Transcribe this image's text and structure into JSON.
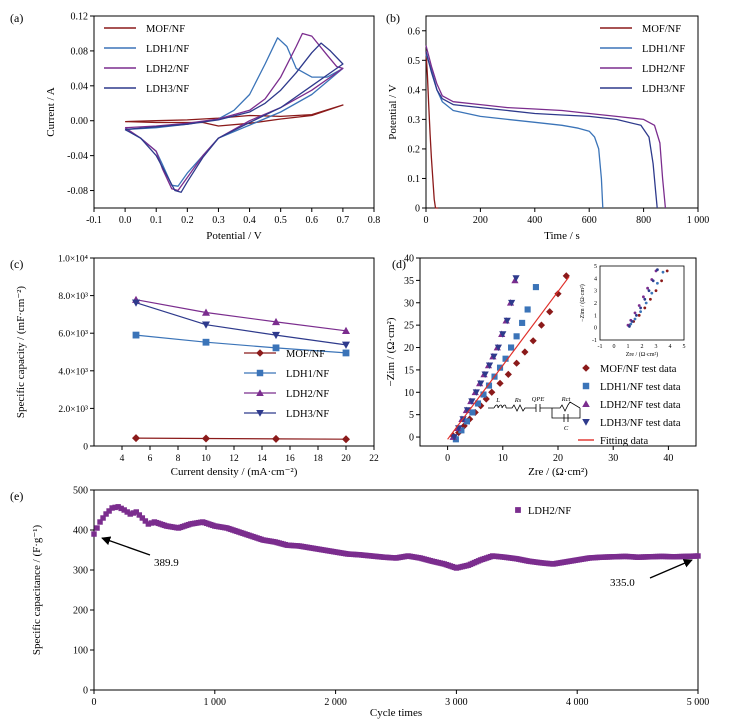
{
  "chart_data": [
    {
      "panel": "(a)",
      "type": "line",
      "xlabel": "Potential / V",
      "ylabel": "Current / A",
      "xlim": [
        -0.1,
        0.8
      ],
      "ylim": [
        -0.1,
        0.12
      ],
      "xticks": [
        -0.1,
        0.0,
        0.1,
        0.2,
        0.3,
        0.4,
        0.5,
        0.6,
        0.7,
        0.8
      ],
      "yticks": [
        -0.08,
        -0.04,
        0.0,
        0.04,
        0.08,
        0.12
      ],
      "xticklabels": [
        "-0.1",
        "0.0",
        "0.1",
        "0.2",
        "0.3",
        "0.4",
        "0.5",
        "0.6",
        "0.7",
        "0.8"
      ],
      "yticklabels": [
        "-0.08",
        "-0.04",
        "0.00",
        "0.04",
        "0.08",
        "0.12"
      ],
      "legend_position": "top-left",
      "series": [
        {
          "name": "MOF/NF",
          "color": "#8b1a1a",
          "x": [
            0,
            0.1,
            0.2,
            0.3,
            0.4,
            0.5,
            0.6,
            0.7,
            0.7,
            0.6,
            0.5,
            0.4,
            0.3,
            0.25,
            0.2,
            0.1,
            0
          ],
          "y": [
            -0.001,
            0.0,
            0.001,
            0.003,
            0.006,
            0.005,
            0.007,
            0.018,
            0.018,
            0.006,
            0.002,
            -0.003,
            -0.006,
            -0.002,
            -0.002,
            -0.002,
            -0.001
          ]
        },
        {
          "name": "LDH1/NF",
          "color": "#3b74b8",
          "x": [
            0,
            0.1,
            0.2,
            0.3,
            0.35,
            0.4,
            0.45,
            0.49,
            0.52,
            0.55,
            0.6,
            0.65,
            0.7,
            0.7,
            0.6,
            0.5,
            0.4,
            0.3,
            0.25,
            0.2,
            0.17,
            0.15,
            0.12,
            0.1,
            0.05,
            0
          ],
          "y": [
            -0.01,
            -0.008,
            -0.004,
            0.002,
            0.012,
            0.03,
            0.065,
            0.095,
            0.085,
            0.06,
            0.05,
            0.05,
            0.06,
            0.06,
            0.03,
            0.01,
            -0.005,
            -0.02,
            -0.04,
            -0.06,
            -0.075,
            -0.074,
            -0.05,
            -0.035,
            -0.02,
            -0.01
          ]
        },
        {
          "name": "LDH2/NF",
          "color": "#7b2d8e",
          "x": [
            0,
            0.1,
            0.2,
            0.3,
            0.4,
            0.45,
            0.5,
            0.55,
            0.57,
            0.6,
            0.65,
            0.68,
            0.7,
            0.7,
            0.6,
            0.5,
            0.4,
            0.3,
            0.25,
            0.2,
            0.17,
            0.15,
            0.12,
            0.1,
            0.05,
            0
          ],
          "y": [
            -0.008,
            -0.006,
            -0.003,
            0.002,
            0.012,
            0.025,
            0.05,
            0.085,
            0.1,
            0.097,
            0.075,
            0.062,
            0.06,
            0.06,
            0.035,
            0.015,
            0.0,
            -0.02,
            -0.04,
            -0.065,
            -0.08,
            -0.078,
            -0.055,
            -0.035,
            -0.02,
            -0.008
          ]
        },
        {
          "name": "LDH3/NF",
          "color": "#2e3a8c",
          "x": [
            0,
            0.1,
            0.2,
            0.3,
            0.4,
            0.45,
            0.5,
            0.55,
            0.6,
            0.63,
            0.66,
            0.7,
            0.7,
            0.6,
            0.5,
            0.4,
            0.3,
            0.25,
            0.2,
            0.18,
            0.16,
            0.13,
            0.1,
            0.05,
            0
          ],
          "y": [
            -0.01,
            -0.007,
            -0.004,
            0.001,
            0.01,
            0.02,
            0.035,
            0.055,
            0.078,
            0.089,
            0.08,
            0.065,
            0.065,
            0.04,
            0.015,
            -0.002,
            -0.02,
            -0.042,
            -0.07,
            -0.082,
            -0.08,
            -0.06,
            -0.04,
            -0.02,
            -0.01
          ]
        }
      ]
    },
    {
      "panel": "(b)",
      "type": "line",
      "xlabel": "Time / s",
      "ylabel": "Potential / V",
      "xlim": [
        0,
        1000
      ],
      "ylim": [
        0,
        0.65
      ],
      "xticks": [
        0,
        200,
        400,
        600,
        800,
        1000
      ],
      "yticks": [
        0,
        0.1,
        0.2,
        0.3,
        0.4,
        0.5,
        0.6
      ],
      "xticklabels": [
        "0",
        "200",
        "400",
        "600",
        "800",
        "1 000"
      ],
      "yticklabels": [
        "0",
        "0.1",
        "0.2",
        "0.3",
        "0.4",
        "0.5",
        "0.6"
      ],
      "legend_position": "top-right",
      "series": [
        {
          "name": "MOF/NF",
          "color": "#8b1a1a",
          "x": [
            0,
            5,
            10,
            15,
            20,
            25,
            30,
            35,
            40,
            45
          ],
          "y": [
            0.53,
            0.45,
            0.35,
            0.25,
            0.17,
            0.1,
            0.03,
            0.0,
            0.0,
            0.0
          ]
        },
        {
          "name": "LDH1/NF",
          "color": "#3b74b8",
          "x": [
            0,
            20,
            40,
            60,
            100,
            200,
            300,
            400,
            500,
            560,
            600,
            620,
            635,
            645,
            650
          ],
          "y": [
            0.52,
            0.47,
            0.4,
            0.36,
            0.33,
            0.31,
            0.3,
            0.29,
            0.28,
            0.27,
            0.26,
            0.24,
            0.2,
            0.1,
            0.0
          ]
        },
        {
          "name": "LDH2/NF",
          "color": "#7b2d8e",
          "x": [
            0,
            20,
            40,
            60,
            100,
            200,
            300,
            400,
            500,
            600,
            700,
            800,
            840,
            860,
            870,
            880
          ],
          "y": [
            0.55,
            0.48,
            0.42,
            0.38,
            0.36,
            0.35,
            0.34,
            0.335,
            0.33,
            0.32,
            0.31,
            0.3,
            0.28,
            0.22,
            0.1,
            0.0
          ]
        },
        {
          "name": "LDH3/NF",
          "color": "#2e3a8c",
          "x": [
            0,
            20,
            40,
            60,
            100,
            200,
            300,
            400,
            500,
            600,
            700,
            790,
            820,
            835,
            845,
            850
          ],
          "y": [
            0.53,
            0.46,
            0.4,
            0.37,
            0.35,
            0.34,
            0.33,
            0.32,
            0.315,
            0.31,
            0.3,
            0.28,
            0.24,
            0.15,
            0.05,
            0.0
          ]
        }
      ]
    },
    {
      "panel": "(c)",
      "type": "line",
      "xlabel": "Current density / (mA·cm⁻²)",
      "ylabel": "Specific capacity / (mF·cm⁻²)",
      "xlim": [
        2,
        22
      ],
      "ylim": [
        0,
        10000
      ],
      "xticks": [
        4,
        6,
        8,
        10,
        12,
        14,
        16,
        18,
        20,
        22
      ],
      "yticks": [
        0,
        2000,
        4000,
        6000,
        8000,
        10000
      ],
      "xticklabels": [
        "4",
        "6",
        "8",
        "10",
        "12",
        "14",
        "16",
        "18",
        "20",
        "22"
      ],
      "yticklabels": [
        "0",
        "2.0×10³",
        "4.0×10³",
        "6.0×10³",
        "8.0×10³",
        "1.0×10⁴"
      ],
      "legend_position": "center-right",
      "series": [
        {
          "name": "MOF/NF",
          "color": "#8b1a1a",
          "marker": "diamond",
          "x": [
            5,
            10,
            15,
            20
          ],
          "y": [
            420,
            400,
            380,
            360
          ]
        },
        {
          "name": "LDH1/NF",
          "color": "#3b74b8",
          "marker": "square",
          "x": [
            5,
            10,
            15,
            20
          ],
          "y": [
            5900,
            5520,
            5220,
            4950
          ]
        },
        {
          "name": "LDH2/NF",
          "color": "#7b2d8e",
          "marker": "triangle-up",
          "x": [
            5,
            10,
            15,
            20
          ],
          "y": [
            7780,
            7100,
            6600,
            6130
          ]
        },
        {
          "name": "LDH3/NF",
          "color": "#2e3a8c",
          "marker": "triangle-down",
          "x": [
            5,
            10,
            15,
            20
          ],
          "y": [
            7620,
            6450,
            5900,
            5380
          ]
        }
      ]
    },
    {
      "panel": "(d)",
      "type": "scatter",
      "xlabel": "Zre / (Ω·cm²)",
      "ylabel": "−Zim / (Ω·cm²)",
      "xlim": [
        -5,
        45
      ],
      "ylim": [
        -2,
        40
      ],
      "xticks": [
        0,
        10,
        20,
        30,
        40
      ],
      "yticks": [
        0,
        5,
        10,
        15,
        20,
        25,
        30,
        35,
        40
      ],
      "xticklabels": [
        "0",
        "10",
        "20",
        "30",
        "40"
      ],
      "yticklabels": [
        "0",
        "5",
        "10",
        "15",
        "20",
        "25",
        "30",
        "35",
        "40"
      ],
      "legend_position": "bottom-right",
      "circuit_labels": [
        "L",
        "Rs",
        "QPE",
        "Rct",
        "C"
      ],
      "series": [
        {
          "name": "MOF/NF test data",
          "color": "#8b1a1a",
          "marker": "diamond",
          "x": [
            1,
            2,
            3,
            4,
            5,
            6,
            7,
            8,
            9.5,
            11,
            12.5,
            14,
            15.5,
            17,
            18.5,
            20,
            21.5
          ],
          "y": [
            0.3,
            1.0,
            2.5,
            4.0,
            5.5,
            7.0,
            8.5,
            10,
            12,
            14,
            16.5,
            19,
            21.5,
            25,
            28,
            32,
            36
          ]
        },
        {
          "name": "LDH1/NF test data",
          "color": "#3b74b8",
          "marker": "square",
          "x": [
            1.5,
            2.5,
            3.5,
            4.5,
            5.5,
            6.5,
            7.5,
            8.5,
            9.5,
            10.5,
            11.5,
            12.5,
            13.5,
            14.5,
            16
          ],
          "y": [
            -0.5,
            1.5,
            3.5,
            5.5,
            7.5,
            9.5,
            11.5,
            13.5,
            15.5,
            17.5,
            20,
            22.5,
            25.5,
            28.5,
            33.5
          ]
        },
        {
          "name": "LDH2/NF test data",
          "color": "#7b2d8e",
          "marker": "triangle-up",
          "x": [
            1,
            1.8,
            2.6,
            3.4,
            4.2,
            5,
            5.8,
            6.6,
            7.4,
            8.2,
            9,
            9.8,
            10.6,
            11.4,
            12.2
          ],
          "y": [
            0,
            2,
            4,
            6,
            8,
            10,
            12,
            14,
            16,
            18,
            20,
            23,
            26,
            30,
            35
          ]
        },
        {
          "name": "LDH3/NF test data",
          "color": "#2e3a8c",
          "marker": "triangle-down",
          "x": [
            1.2,
            2,
            2.8,
            3.6,
            4.4,
            5.2,
            6,
            6.8,
            7.6,
            8.4,
            9.2,
            10,
            10.8,
            11.6,
            12.4
          ],
          "y": [
            0,
            2,
            4,
            6,
            8,
            10,
            12,
            14,
            16,
            18,
            20,
            23,
            26,
            30,
            35.5
          ]
        },
        {
          "name": "Fitting data",
          "color": "#e0302a",
          "marker": "line",
          "x": [
            0,
            22
          ],
          "y": [
            -0.5,
            35.8
          ]
        }
      ],
      "inset": {
        "xlabel": "Zre / (Ω·cm²)",
        "ylabel": "−Zim / (Ω·cm²)",
        "xlim": [
          -1,
          5
        ],
        "ylim": [
          -1,
          5
        ],
        "ticks": [
          -1,
          0,
          1,
          2,
          3,
          4,
          5
        ],
        "ticklabels": [
          "-1",
          "0",
          "1",
          "2",
          "3",
          "4",
          "5"
        ],
        "series": [
          {
            "color": "#8b1a1a",
            "x": [
              1.1,
              1.4,
              1.8,
              2.2,
              2.6,
              3,
              3.4,
              3.8
            ],
            "y": [
              0.2,
              0.5,
              1,
              1.6,
              2.3,
              3,
              3.8,
              4.6
            ]
          },
          {
            "color": "#3b74b8",
            "x": [
              1.2,
              1.5,
              1.9,
              2.3,
              2.7,
              3.1,
              3.5
            ],
            "y": [
              0.3,
              0.7,
              1.3,
              2,
              2.8,
              3.6,
              4.5
            ]
          },
          {
            "color": "#7b2d8e",
            "x": [
              1,
              1.2,
              1.5,
              1.8,
              2.1,
              2.4,
              2.7,
              3
            ],
            "y": [
              0.2,
              0.6,
              1.2,
              1.8,
              2.5,
              3.2,
              3.9,
              4.6
            ]
          },
          {
            "color": "#2e3a8c",
            "x": [
              1.1,
              1.3,
              1.6,
              1.9,
              2.2,
              2.5,
              2.8,
              3.1
            ],
            "y": [
              0.1,
              0.5,
              1,
              1.6,
              2.3,
              3,
              3.8,
              4.7
            ]
          }
        ]
      }
    },
    {
      "panel": "(e)",
      "type": "scatter",
      "xlabel": "Cycle times",
      "ylabel": "Specific capacitance / (F·g⁻¹)",
      "xlim": [
        0,
        5000
      ],
      "ylim": [
        0,
        500
      ],
      "xticks": [
        0,
        1000,
        2000,
        3000,
        4000,
        5000
      ],
      "yticks": [
        0,
        100,
        200,
        300,
        400,
        500
      ],
      "xticklabels": [
        "0",
        "1 000",
        "2 000",
        "3 000",
        "4 000",
        "5 000"
      ],
      "yticklabels": [
        "0",
        "100",
        "200",
        "300",
        "400",
        "500"
      ],
      "legend_position": "top-center",
      "annotations": [
        {
          "text": "389.9",
          "x": 0,
          "y": 389.9
        },
        {
          "text": "335.0",
          "x": 5000,
          "y": 335.0
        }
      ],
      "series": [
        {
          "name": "LDH2/NF",
          "color": "#7b2d8e",
          "marker": "square",
          "x": [
            0,
            50,
            100,
            150,
            200,
            250,
            300,
            350,
            400,
            450,
            500,
            600,
            700,
            800,
            900,
            1000,
            1100,
            1200,
            1300,
            1400,
            1500,
            1600,
            1700,
            1800,
            1900,
            2000,
            2100,
            2200,
            2300,
            2400,
            2500,
            2600,
            2700,
            2800,
            2900,
            3000,
            3100,
            3200,
            3300,
            3400,
            3500,
            3600,
            3700,
            3800,
            3900,
            4000,
            4100,
            4200,
            4300,
            4400,
            4500,
            4600,
            4700,
            4800,
            4900,
            5000
          ],
          "y": [
            389.9,
            420,
            440,
            455,
            458,
            450,
            440,
            445,
            430,
            415,
            420,
            410,
            405,
            415,
            420,
            410,
            405,
            395,
            385,
            375,
            370,
            362,
            360,
            355,
            350,
            345,
            340,
            338,
            335,
            332,
            330,
            335,
            330,
            322,
            315,
            305,
            312,
            325,
            335,
            332,
            328,
            322,
            318,
            315,
            320,
            325,
            330,
            332,
            333,
            334,
            332,
            333,
            334,
            333,
            334,
            335.0
          ]
        }
      ]
    }
  ]
}
